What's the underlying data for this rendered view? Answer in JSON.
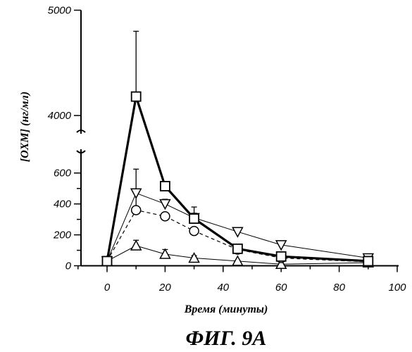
{
  "chart_data": {
    "type": "line",
    "title": "",
    "xlabel": "Время (минуты)",
    "ylabel": "[OXM] (нг/мл)",
    "caption": "ФИГ. 9А",
    "xlim": [
      -10,
      100
    ],
    "x_ticks": [
      0,
      20,
      40,
      60,
      80,
      100
    ],
    "y_lower_range": [
      0,
      650
    ],
    "y_lower_ticks": [
      0,
      200,
      400,
      600
    ],
    "y_upper_range": [
      3800,
      5000
    ],
    "y_upper_ticks": [
      4000,
      5000
    ],
    "y_axis_broken": true,
    "grid": false,
    "legend": "none",
    "series": [
      {
        "marker": "square",
        "line": "thick-solid",
        "x": [
          0,
          10,
          20,
          30,
          45,
          60,
          90
        ],
        "y": [
          30,
          4180,
          515,
          305,
          110,
          60,
          30
        ],
        "err": [
          0,
          620,
          25,
          75,
          25,
          15,
          15
        ]
      },
      {
        "marker": "triangle-down",
        "line": "thin-solid",
        "x": [
          0,
          10,
          20,
          30,
          45,
          60,
          90
        ],
        "y": [
          30,
          470,
          400,
          310,
          220,
          135,
          50
        ],
        "err": [
          0,
          0,
          30,
          30,
          25,
          10,
          15
        ]
      },
      {
        "marker": "circle",
        "line": "dashed",
        "x": [
          0,
          10,
          20,
          30,
          45,
          60,
          90
        ],
        "y": [
          30,
          360,
          320,
          225,
          105,
          50,
          25
        ],
        "err": [
          0,
          265,
          0,
          0,
          20,
          5,
          5
        ]
      },
      {
        "marker": "triangle-up",
        "line": "thin-solid",
        "x": [
          0,
          10,
          20,
          30,
          45,
          60,
          90
        ],
        "y": [
          30,
          130,
          75,
          50,
          30,
          10,
          20
        ],
        "err": [
          0,
          35,
          30,
          15,
          5,
          5,
          5
        ]
      }
    ]
  }
}
